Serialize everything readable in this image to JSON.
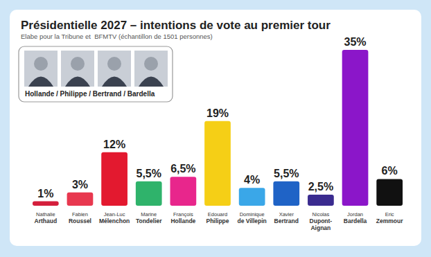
{
  "chart_data": {
    "type": "bar",
    "title": "Présidentielle 2027 – intentions de vote au premier tour",
    "subtitle": "Elabe pour la Tribune et  BFMTV (échantillon de 1501 personnes)",
    "annotations": [
      "Hollande / Philippe / Bertrand / Bardella"
    ],
    "categories": [
      "Nathalie Arthaud",
      "Fabien Roussel",
      "Jean-Luc Mélenchon",
      "Marine Tondelier",
      "François Hollande",
      "Edouard Philippe",
      "Dominique de Villepin",
      "Xavier Bertrand",
      "Nicolas Dupont-Aignan",
      "Jordan Bardella",
      "Eric Zemmour"
    ],
    "values": [
      1,
      3,
      12,
      5.5,
      6.5,
      19,
      4,
      5.5,
      2.5,
      35,
      6
    ],
    "value_labels": [
      "1%",
      "3%",
      "12%",
      "5,5%",
      "6,5%",
      "19%",
      "4%",
      "5,5%",
      "2,5%",
      "35%",
      "6%"
    ],
    "colors": [
      "#d41f3c",
      "#e8384f",
      "#e3192f",
      "#2fb36b",
      "#e8268c",
      "#f5cf16",
      "#3aa7e8",
      "#1f63c6",
      "#3a2b8f",
      "#8b16c9",
      "#111111"
    ],
    "ylim": [
      0,
      35
    ],
    "data_labels": true,
    "tick_labels": false,
    "grid": false
  }
}
